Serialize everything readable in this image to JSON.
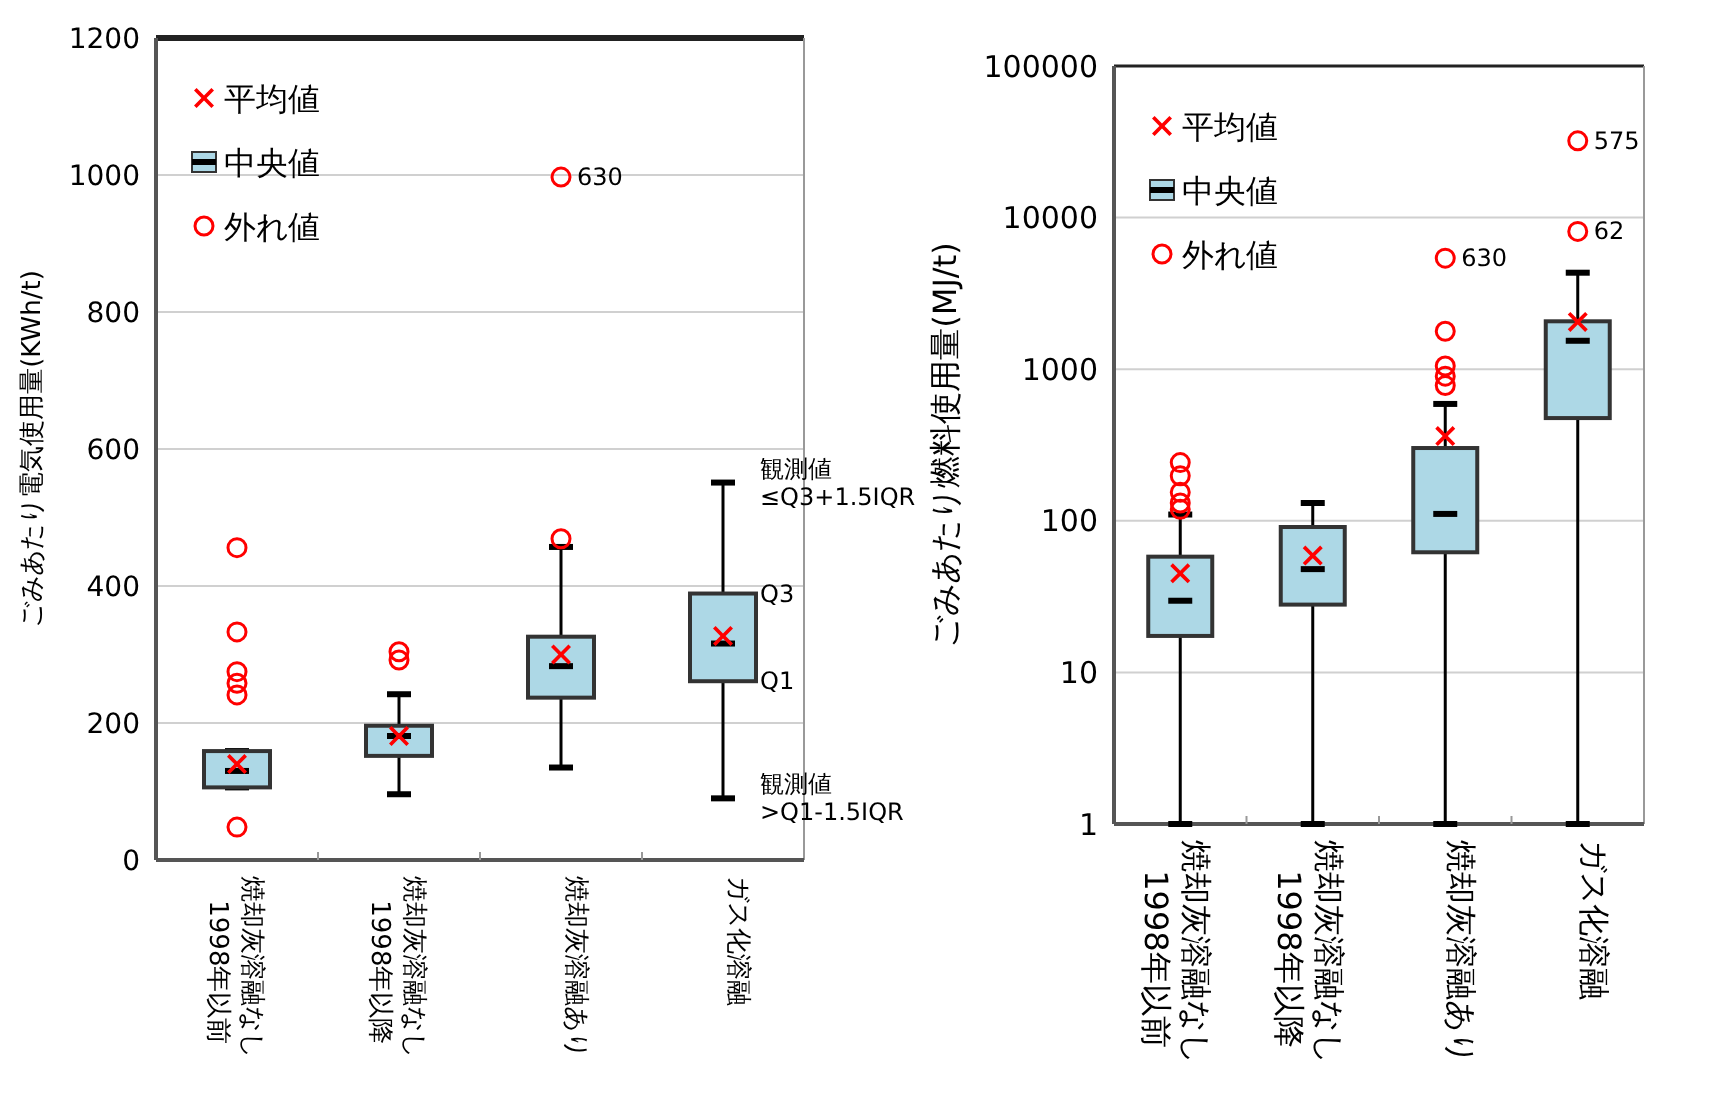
{
  "chart_data": [
    {
      "type": "box",
      "ylabel": "ごみあたり電気使用量(KWh/t)",
      "categories": [
        "焼却灰溶融なし\n1998年以前",
        "焼却灰溶融なし\n1998年以降",
        "焼却灰溶融あり",
        "ガス化溶融"
      ],
      "ylim": [
        0,
        1200
      ],
      "yticks": [
        0,
        200,
        400,
        600,
        800,
        1000,
        1200
      ],
      "grid": "y",
      "legend": "top left",
      "series": [
        {
          "name": "平均値",
          "type": "scatter",
          "marker": "cross",
          "color": "#ff0000",
          "x": [
            "焼却灰溶融なし\n1998年以前",
            "焼却灰溶融なし\n1998年以降",
            "焼却灰溶融あり",
            "ガス化溶融"
          ],
          "values": [
            140,
            181,
            300,
            327
          ]
        },
        {
          "name": "中央値",
          "type": "box",
          "color": "#add8e6",
          "boxes": [
            {
              "low": 106,
              "q1": 106,
              "median": 130,
              "q3": 159,
              "high": 159
            },
            {
              "low": 96,
              "q1": 152,
              "median": 181,
              "q3": 196,
              "high": 242
            },
            {
              "low": 135,
              "q1": 237,
              "median": 283,
              "q3": 326,
              "high": 457
            },
            {
              "low": 90,
              "q1": 261,
              "median": 316,
              "q3": 389,
              "high": 551
            }
          ]
        },
        {
          "name": "外れ値",
          "type": "scatter",
          "marker": "circle",
          "color": "#ff0000",
          "x": [
            "焼却灰溶融なし\n1998年以前",
            "焼却灰溶融なし\n1998年以前",
            "焼却灰溶融なし\n1998年以前",
            "焼却灰溶融なし\n1998年以前",
            "焼却灰溶融なし\n1998年以前",
            "焼却灰溶融なし\n1998年以前",
            "焼却灰溶融なし\n1998年以降",
            "焼却灰溶融なし\n1998年以降",
            "焼却灰溶融あり",
            "焼却灰溶融あり"
          ],
          "values": [
            456,
            333,
            275,
            258,
            241,
            48,
            304,
            292,
            469,
            997
          ]
        }
      ],
      "annotations": [
        {
          "text": "630",
          "x": "焼却灰溶融あり",
          "y": 997
        },
        {
          "text": "観測値\n≤Q3+1.5IQR",
          "x": "ガス化溶融",
          "y": 551
        },
        {
          "text": "Q3",
          "x": "ガス化溶融",
          "y": 389
        },
        {
          "text": "Q1",
          "x": "ガス化溶融",
          "y": 261
        },
        {
          "text": "観測値\n>Q1-1.5IQR",
          "x": "ガス化溶融",
          "y": 90
        }
      ]
    },
    {
      "type": "box",
      "ylabel": "ごみあたり燃料使用量(MJ/t)",
      "log": "y",
      "categories": [
        "焼却灰溶融なし\n1998年以前",
        "焼却灰溶融なし\n1998年以降",
        "焼却灰溶融あり",
        "ガス化溶融"
      ],
      "ylim": [
        1,
        100000
      ],
      "yticks": [
        1,
        10,
        100,
        1000,
        10000,
        100000
      ],
      "grid": "y",
      "legend": "top left",
      "series": [
        {
          "name": "平均値",
          "type": "scatter",
          "marker": "cross",
          "color": "#ff0000",
          "x": [
            "焼却灰溶融なし\n1998年以前",
            "焼却灰溶融なし\n1998年以降",
            "焼却灰溶融あり",
            "ガス化溶融"
          ],
          "values": [
            45,
            59,
            362,
            2050
          ]
        },
        {
          "name": "中央値",
          "type": "box",
          "color": "#add8e6",
          "boxes": [
            {
              "low": 1,
              "q1": 17.4,
              "median": 29.7,
              "q3": 58,
              "high": 110
            },
            {
              "low": 1,
              "q1": 28,
              "median": 48,
              "q3": 91,
              "high": 131
            },
            {
              "low": 1,
              "q1": 62,
              "median": 111,
              "q3": 302,
              "high": 590
            },
            {
              "low": 1,
              "q1": 476,
              "median": 1540,
              "q3": 2070,
              "high": 4330
            }
          ]
        },
        {
          "name": "外れ値",
          "type": "scatter",
          "marker": "circle",
          "color": "#ff0000",
          "x": [
            "焼却灰溶融なし\n1998年以前",
            "焼却灰溶融なし\n1998年以前",
            "焼却灰溶融なし\n1998年以前",
            "焼却灰溶融なし\n1998年以前",
            "焼却灰溶融なし\n1998年以前",
            "焼却灰溶融あり",
            "焼却灰溶融あり",
            "焼却灰溶融あり",
            "焼却灰溶融あり",
            "焼却灰溶融あり",
            "ガス化溶融",
            "ガス化溶融"
          ],
          "values": [
            242,
            198,
            154,
            131,
            119,
            5400,
            1780,
            1050,
            900,
            780,
            32100,
            8110
          ]
        }
      ],
      "annotations": [
        {
          "text": "630",
          "x": "焼却灰溶融あり",
          "y": 5400
        },
        {
          "text": "575",
          "x": "ガス化溶融",
          "y": 32100
        },
        {
          "text": "62",
          "x": "ガス化溶融",
          "y": 8110
        }
      ]
    }
  ]
}
